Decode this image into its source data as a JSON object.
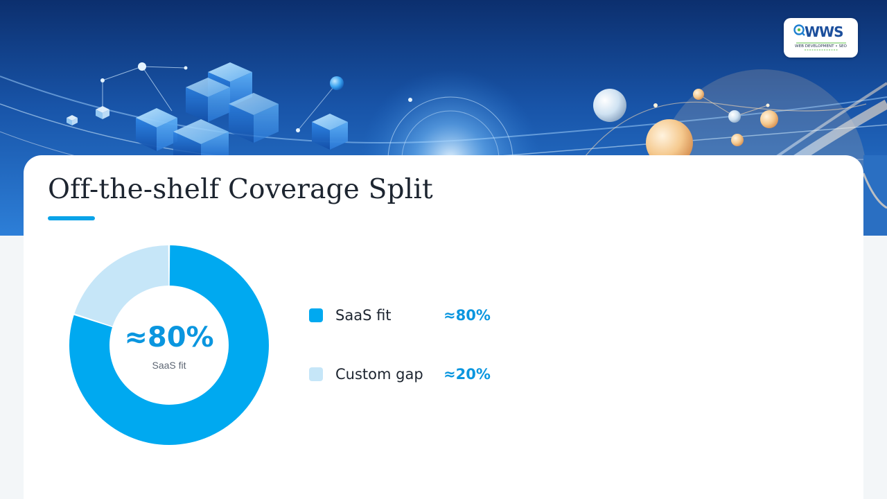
{
  "logo": {
    "mark": "WWS",
    "tagline": "WEB DEVELOPMENT • SEO"
  },
  "slide": {
    "title": "Off-the-shelf Coverage Split"
  },
  "chart_data": {
    "type": "pie",
    "style": "donut",
    "title": "",
    "center_value": "≈80%",
    "center_label": "SaaS fit",
    "legend_position": "right",
    "series": [
      {
        "name": "SaaS fit",
        "value": 80,
        "value_label": "≈80%",
        "color": "#00a9f0"
      },
      {
        "name": "Custom gap",
        "value": 20,
        "value_label": "≈20%",
        "color": "#c6e6f8"
      }
    ]
  }
}
